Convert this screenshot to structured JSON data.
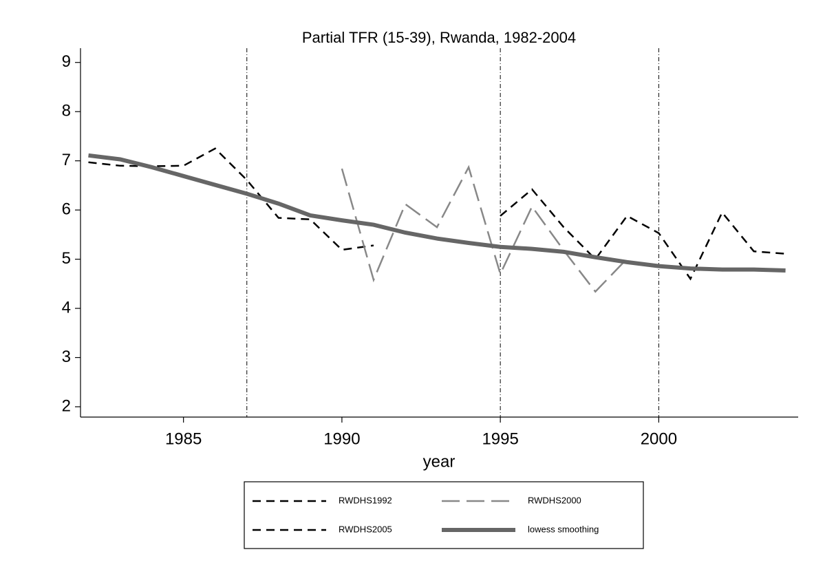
{
  "chart_data": {
    "type": "line",
    "title": "Partial TFR (15-39), Rwanda, 1982-2004",
    "xlabel": "year",
    "xlim": [
      1981.75,
      2004.4
    ],
    "ylim": [
      1.79,
      9.29
    ],
    "xticks": [
      1985,
      1990,
      1995,
      2000
    ],
    "yticks": [
      2,
      3,
      4,
      5,
      6,
      7,
      8,
      9
    ],
    "vlines": [
      1987,
      1995,
      2000
    ],
    "series": [
      {
        "name": "RWDHS1992",
        "color": "#000000",
        "dash": "12 8",
        "width": 2.5,
        "x": [
          1982,
          1983,
          1984,
          1985,
          1986,
          1987,
          1988,
          1989,
          1990,
          1991
        ],
        "values": [
          6.97,
          6.9,
          6.89,
          6.9,
          7.25,
          6.61,
          5.84,
          5.81,
          5.19,
          5.28
        ]
      },
      {
        "name": "RWDHS2000",
        "color": "#888888",
        "dash": "26 10",
        "width": 2.5,
        "x": [
          1990,
          1991,
          1992,
          1993,
          1994,
          1995,
          1996,
          1997,
          1998,
          1999
        ],
        "values": [
          6.84,
          4.58,
          6.12,
          5.65,
          6.87,
          4.7,
          6.07,
          5.18,
          4.34,
          5.01
        ]
      },
      {
        "name": "RWDHS2005",
        "color": "#000000",
        "dash": "12 8",
        "width": 2.5,
        "x": [
          1995,
          1996,
          1997,
          1998,
          1999,
          2000,
          2001,
          2002,
          2003,
          2004
        ],
        "values": [
          5.88,
          6.42,
          5.65,
          5.0,
          5.88,
          5.53,
          4.6,
          5.95,
          5.16,
          5.11
        ]
      },
      {
        "name": "lowess smoothing",
        "color": "#666666",
        "dash": "none",
        "width": 6,
        "x": [
          1982,
          1983,
          1984,
          1985,
          1986,
          1987,
          1988,
          1989,
          1990,
          1991,
          1992,
          1993,
          1994,
          1995,
          1996,
          1997,
          1998,
          1999,
          2000,
          2001,
          2002,
          2003,
          2004
        ],
        "values": [
          7.11,
          7.03,
          6.87,
          6.69,
          6.51,
          6.33,
          6.13,
          5.89,
          5.79,
          5.7,
          5.54,
          5.42,
          5.33,
          5.25,
          5.21,
          5.15,
          5.04,
          4.94,
          4.86,
          4.81,
          4.79,
          4.79,
          4.77
        ]
      }
    ]
  }
}
